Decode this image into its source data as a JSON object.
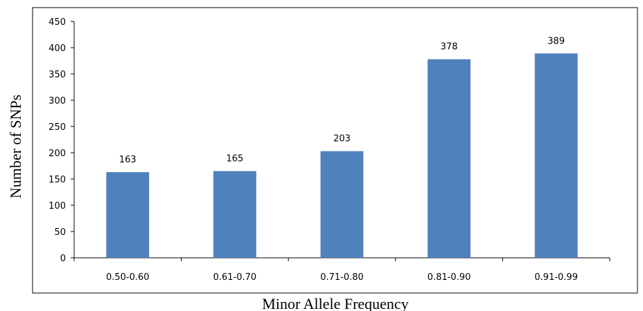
{
  "chart_data": {
    "type": "bar",
    "categories": [
      "0.50-0.60",
      "0.61-0.70",
      "0.71-0.80",
      "0.81-0.90",
      "0.91-0.99"
    ],
    "values": [
      163,
      165,
      203,
      378,
      389
    ],
    "data_labels": [
      "163",
      "165",
      "203",
      "378",
      "389"
    ],
    "title": "",
    "xlabel": "Minor Allele Frequency",
    "ylabel": "Number of SNPs",
    "ylim": [
      0,
      450
    ],
    "yticks": [
      0,
      50,
      100,
      150,
      200,
      250,
      300,
      350,
      400,
      450
    ],
    "grid": false,
    "legend": "none",
    "bar_color": "#4f81bd"
  }
}
